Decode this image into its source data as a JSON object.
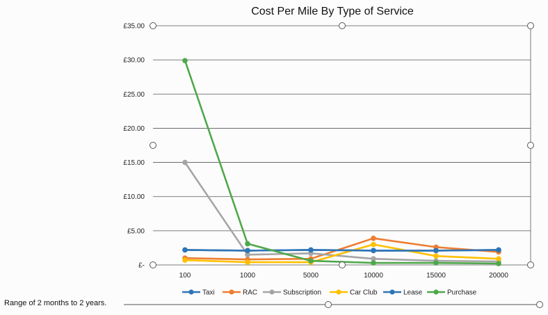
{
  "chart_data": {
    "type": "line",
    "title": "Cost Per Mile By Type of Service",
    "categories": [
      "100",
      "1000",
      "5000",
      "10000",
      "15000",
      "20000"
    ],
    "y_ticks": [
      "£-",
      "£5.00",
      "£10.00",
      "£15.00",
      "£20.00",
      "£25.00",
      "£30.00",
      "£35.00"
    ],
    "ylim": [
      0,
      35
    ],
    "grid": true,
    "legend_position": "bottom",
    "series": [
      {
        "name": "Taxi",
        "color": "#2e75b6",
        "values": [
          2.2,
          2.1,
          2.2,
          2.1,
          2.1,
          2.2
        ]
      },
      {
        "name": "RAC",
        "color": "#ed7d31",
        "values": [
          1.0,
          0.8,
          0.9,
          3.9,
          2.6,
          1.9
        ]
      },
      {
        "name": "Subscription",
        "color": "#a5a5a5",
        "values": [
          15.0,
          1.5,
          1.7,
          0.9,
          0.6,
          0.5
        ]
      },
      {
        "name": "Car Club",
        "color": "#ffc000",
        "values": [
          0.7,
          0.4,
          0.4,
          3.0,
          1.3,
          0.9
        ]
      },
      {
        "name": "Lease",
        "color": "#2e75b6",
        "values": [
          2.2,
          2.1,
          2.2,
          2.1,
          2.1,
          2.2
        ]
      },
      {
        "name": "Purchase",
        "color": "#4ea84a",
        "values": [
          29.9,
          3.1,
          0.6,
          0.3,
          0.3,
          0.2
        ]
      }
    ]
  },
  "footer": {
    "range_text": "Range of 2 months to 2 years."
  }
}
